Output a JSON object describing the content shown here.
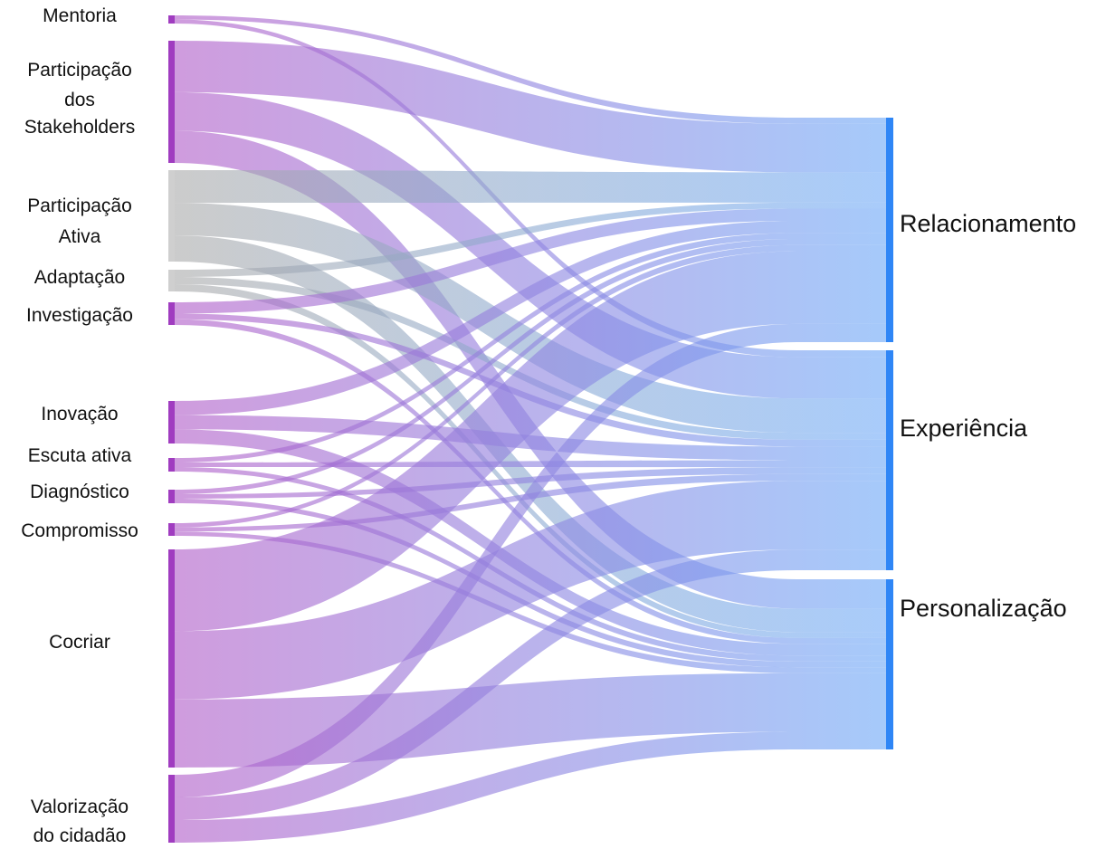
{
  "colors": {
    "source_purple": "#a03cc0",
    "source_gray": "#cfcfcf",
    "target_blue": "#2f86f6",
    "flow_start_purple": "#b25fc9",
    "flow_start_gray": "#a9a9a9",
    "flow_end_blue": "#6fa9f7"
  },
  "diagram": {
    "sources": [
      {
        "id": "mentoria",
        "label_lines": [
          "Mentoria"
        ],
        "color": "purple"
      },
      {
        "id": "participacao-dos-stakeholders",
        "label_lines": [
          "Participação",
          "dos",
          "Stakeholders"
        ],
        "color": "purple"
      },
      {
        "id": "participacao-ativa",
        "label_lines": [
          "Participação",
          "Ativa"
        ],
        "color": "gray"
      },
      {
        "id": "adaptacao",
        "label_lines": [
          "Adaptação"
        ],
        "color": "gray"
      },
      {
        "id": "investigacao",
        "label_lines": [
          "Investigação"
        ],
        "color": "purple"
      },
      {
        "id": "inovacao",
        "label_lines": [
          "Inovação"
        ],
        "color": "purple"
      },
      {
        "id": "escuta-ativa",
        "label_lines": [
          "Escuta ativa"
        ],
        "color": "purple"
      },
      {
        "id": "diagnostico",
        "label_lines": [
          "Diagnóstico"
        ],
        "color": "purple"
      },
      {
        "id": "compromisso",
        "label_lines": [
          "Compromisso"
        ],
        "color": "purple"
      },
      {
        "id": "cocriar",
        "label_lines": [
          "Cocriar"
        ],
        "color": "purple"
      },
      {
        "id": "valorizacao-do-cidadao",
        "label_lines": [
          "Valorização",
          "do cidadão"
        ],
        "color": "purple"
      }
    ],
    "targets": [
      {
        "id": "relacionamento",
        "label": "Relacionamento"
      },
      {
        "id": "experiencia",
        "label": "Experiência"
      },
      {
        "id": "personalizacao",
        "label": "Personalização"
      }
    ],
    "links": [
      {
        "source": "mentoria",
        "target": "relacionamento",
        "value": 1
      },
      {
        "source": "mentoria",
        "target": "experiencia",
        "value": 1
      },
      {
        "source": "participacao-dos-stakeholders",
        "target": "relacionamento",
        "value": 8
      },
      {
        "source": "participacao-dos-stakeholders",
        "target": "experiencia",
        "value": 6
      },
      {
        "source": "participacao-dos-stakeholders",
        "target": "personalizacao",
        "value": 5
      },
      {
        "source": "participacao-ativa",
        "target": "relacionamento",
        "value": 5
      },
      {
        "source": "participacao-ativa",
        "target": "experiencia",
        "value": 5
      },
      {
        "source": "participacao-ativa",
        "target": "personalizacao",
        "value": 4
      },
      {
        "source": "adaptacao",
        "target": "relacionamento",
        "value": 1
      },
      {
        "source": "adaptacao",
        "target": "experiencia",
        "value": 1
      },
      {
        "source": "adaptacao",
        "target": "personalizacao",
        "value": 1
      },
      {
        "source": "investigacao",
        "target": "relacionamento",
        "value": 2
      },
      {
        "source": "investigacao",
        "target": "experiencia",
        "value": 1
      },
      {
        "source": "investigacao",
        "target": "personalizacao",
        "value": 1
      },
      {
        "source": "inovacao",
        "target": "relacionamento",
        "value": 2
      },
      {
        "source": "inovacao",
        "target": "experiencia",
        "value": 2
      },
      {
        "source": "inovacao",
        "target": "personalizacao",
        "value": 2
      },
      {
        "source": "escuta-ativa",
        "target": "relacionamento",
        "value": 1
      },
      {
        "source": "escuta-ativa",
        "target": "experiencia",
        "value": 1
      },
      {
        "source": "escuta-ativa",
        "target": "personalizacao",
        "value": 1
      },
      {
        "source": "diagnostico",
        "target": "relacionamento",
        "value": 1
      },
      {
        "source": "diagnostico",
        "target": "experiencia",
        "value": 1
      },
      {
        "source": "diagnostico",
        "target": "personalizacao",
        "value": 1
      },
      {
        "source": "compromisso",
        "target": "relacionamento",
        "value": 1
      },
      {
        "source": "compromisso",
        "target": "experiencia",
        "value": 1
      },
      {
        "source": "compromisso",
        "target": "personalizacao",
        "value": 1
      },
      {
        "source": "cocriar",
        "target": "relacionamento",
        "value": 12
      },
      {
        "source": "cocriar",
        "target": "experiencia",
        "value": 10
      },
      {
        "source": "cocriar",
        "target": "personalizacao",
        "value": 10
      },
      {
        "source": "valorizacao-do-cidadao",
        "target": "relacionamento",
        "value": 3
      },
      {
        "source": "valorizacao-do-cidadao",
        "target": "experiencia",
        "value": 3
      },
      {
        "source": "valorizacao-do-cidadao",
        "target": "personalizacao",
        "value": 3
      }
    ]
  }
}
